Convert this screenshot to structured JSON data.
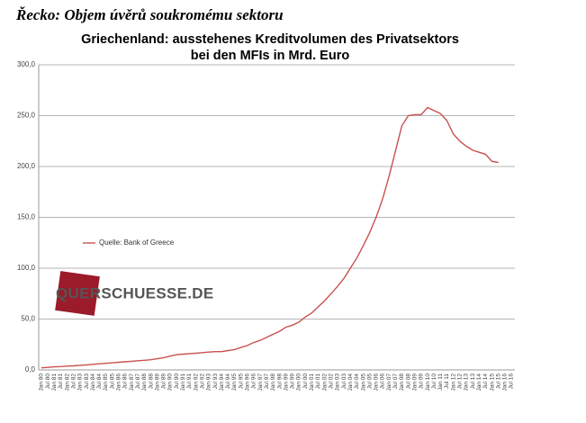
{
  "page_title": "Řecko: Objem úvěrů soukromému sektoru",
  "chart_data": {
    "type": "line",
    "title": [
      "Griechenland: ausstehenes Kreditvolumen des Privatsektors",
      "bei den MFIs in Mrd. Euro"
    ],
    "watermark": "QUERSCHUESSE.DE",
    "categories": [
      "Jan 80",
      "Jul 80",
      "Jan 81",
      "Jul 81",
      "Jan 82",
      "Jul 82",
      "Jan 83",
      "Jul 83",
      "Jan 84",
      "Jul 84",
      "Jan 85",
      "Jul 85",
      "Jan 86",
      "Jul 86",
      "Jan 87",
      "Jul 87",
      "Jan 88",
      "Jul 88",
      "Jan 89",
      "Jul 89",
      "Jan 90",
      "Jul 90",
      "Jan 91",
      "Jul 91",
      "Jan 92",
      "Jul 92",
      "Jan 93",
      "Jul 93",
      "Jan 94",
      "Jul 94",
      "Jan 95",
      "Jul 95",
      "Jan 96",
      "Jul 96",
      "Jan 97",
      "Jul 97",
      "Jan 98",
      "Jul 98",
      "Jan 99",
      "Jul 99",
      "Jan 00",
      "Jul 00",
      "Jan 01",
      "Jul 01",
      "Jan 02",
      "Jul 02",
      "Jan 03",
      "Jul 03",
      "Jan 04",
      "Jul 04",
      "Jan 05",
      "Jul 05",
      "Jan 06",
      "Jul 06",
      "Jan 07",
      "Jul 07",
      "Jan 08",
      "Jul 08",
      "Jan 09",
      "Jul 09",
      "Jan 10",
      "Jul 10",
      "Jan 11",
      "Jul 11",
      "Jan 12",
      "Jul 12",
      "Jan 13",
      "Jul 13",
      "Jan 14",
      "Jul 14",
      "Jan 15",
      "Jul 15",
      "Jan 16",
      "Jul 16"
    ],
    "series": [
      {
        "name": "Quelle: Bank of Greece",
        "color": "#c8524f",
        "values": [
          2,
          2.5,
          3,
          3.3,
          3.7,
          4,
          4.5,
          5,
          5.5,
          6,
          6.5,
          7,
          7.5,
          8,
          8.5,
          9,
          9.5,
          10,
          11,
          12,
          13.5,
          15,
          15.5,
          16,
          16.5,
          17,
          17.5,
          18,
          18,
          19,
          20,
          22,
          24,
          27,
          29,
          32,
          35,
          38,
          42,
          44,
          47,
          52,
          56,
          62,
          68,
          75,
          82,
          90,
          100,
          110,
          122,
          135,
          150,
          168,
          190,
          215,
          240,
          250,
          251,
          251,
          258,
          255,
          252,
          245,
          232,
          225,
          220,
          216,
          214,
          212,
          205,
          204,
          null,
          null
        ]
      }
    ],
    "ylim": [
      0,
      300
    ],
    "yticks": [
      {
        "value": 0,
        "label": "0,0"
      },
      {
        "value": 50,
        "label": "50,0"
      },
      {
        "value": 100,
        "label": "100,0"
      },
      {
        "value": 150,
        "label": "150,0"
      },
      {
        "value": 200,
        "label": "200,0"
      },
      {
        "value": 250,
        "label": "250,0"
      },
      {
        "value": 300,
        "label": "300,0"
      }
    ],
    "grid": true,
    "legend": "center-left"
  }
}
